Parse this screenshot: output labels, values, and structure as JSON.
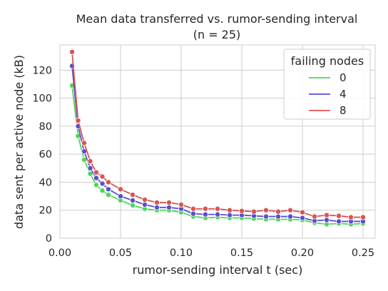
{
  "chart_data": {
    "type": "line",
    "title": "Mean data transferred vs. rumor-sending interval",
    "subtitle": "(n = 25)",
    "xlabel": "rumor-sending interval t (sec)",
    "ylabel": "data sent per active node (kB)",
    "xlim": [
      0.0,
      0.26
    ],
    "ylim": [
      0,
      138
    ],
    "xticks": [
      0.0,
      0.05,
      0.1,
      0.15,
      0.2,
      0.25
    ],
    "xtick_labels": [
      "0.00",
      "0.05",
      "0.10",
      "0.15",
      "0.20",
      "0.25"
    ],
    "yticks": [
      0,
      20,
      40,
      60,
      80,
      100,
      120
    ],
    "ytick_labels": [
      "0",
      "20",
      "40",
      "60",
      "80",
      "100",
      "120"
    ],
    "grid": true,
    "legend": {
      "title": "failing nodes",
      "placement": "top-right"
    },
    "x": [
      0.01,
      0.015,
      0.02,
      0.025,
      0.03,
      0.035,
      0.04,
      0.05,
      0.06,
      0.07,
      0.08,
      0.09,
      0.1,
      0.11,
      0.12,
      0.13,
      0.14,
      0.15,
      0.16,
      0.17,
      0.18,
      0.19,
      0.2,
      0.21,
      0.22,
      0.23,
      0.24,
      0.25
    ],
    "series": [
      {
        "name": "0",
        "color": "#4cd65a",
        "values": [
          109,
          73,
          56,
          46,
          38,
          34,
          31,
          27,
          23.5,
          21,
          20,
          20,
          18.5,
          15.5,
          14.5,
          15,
          14.5,
          14.5,
          14,
          13.5,
          13.5,
          13.5,
          13,
          11,
          10,
          10.5,
          10,
          10.5
        ]
      },
      {
        "name": "4",
        "color": "#5a4fcf",
        "values": [
          123,
          80,
          62,
          50,
          43,
          39,
          35,
          30,
          27,
          24,
          22,
          22,
          21,
          17.5,
          17,
          17,
          16.5,
          16.5,
          16,
          15.5,
          15.5,
          15.5,
          14.5,
          12.5,
          13,
          12,
          12,
          12
        ]
      },
      {
        "name": "8",
        "color": "#d95454",
        "values": [
          133,
          84,
          68,
          55,
          47,
          44,
          40,
          35,
          31,
          27.5,
          25.5,
          25.5,
          24,
          21,
          21,
          21,
          20,
          19.5,
          19,
          20,
          19,
          20,
          18.5,
          15.5,
          16.5,
          16,
          15,
          15
        ]
      }
    ]
  }
}
